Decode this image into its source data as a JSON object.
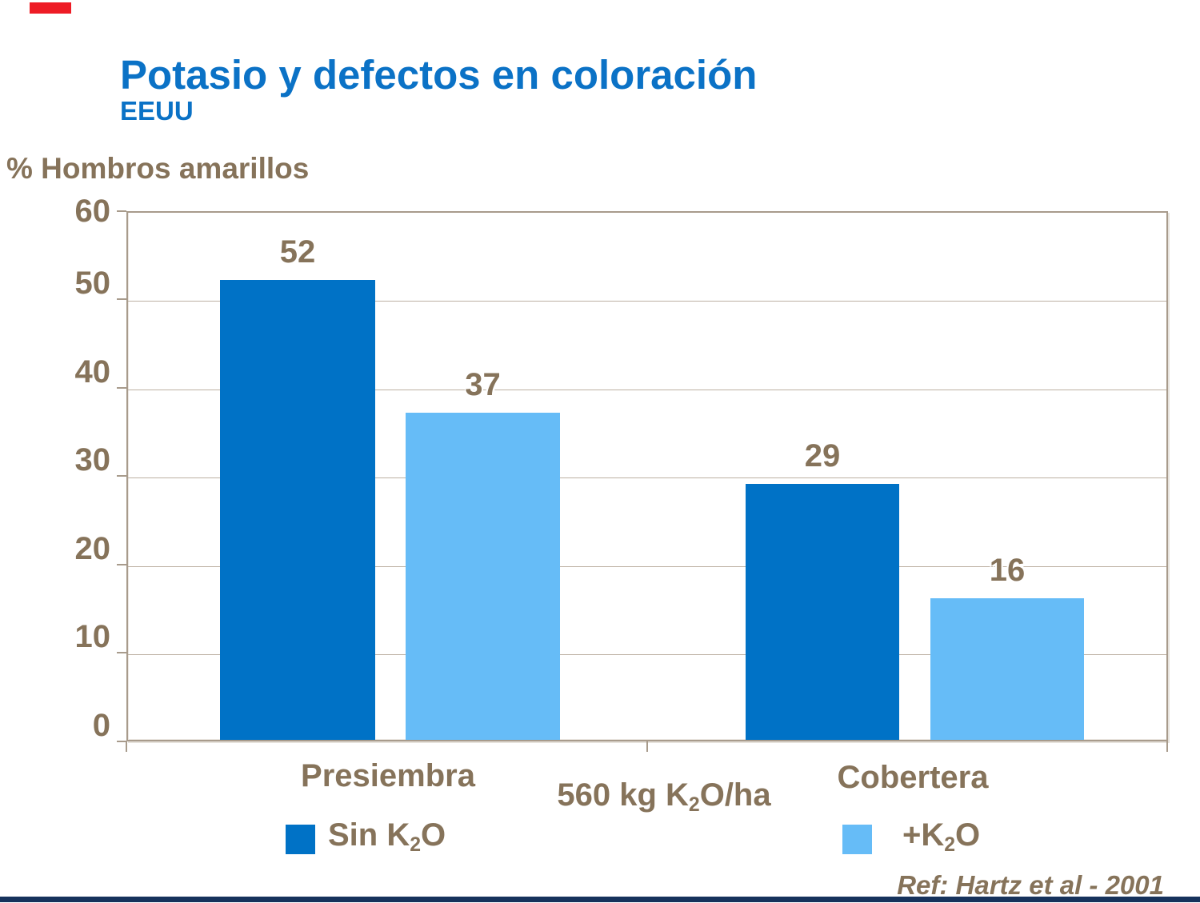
{
  "slide": {
    "title": "Potasio y defectos en coloración",
    "subtitle": "EEUU",
    "y_axis_title": "% Hombros amarillos",
    "reference": "Ref: Hartz et al - 2001"
  },
  "colors": {
    "title_blue": "#0B72C6",
    "dark_blue": "#0072C6",
    "light_blue": "#66BCF7",
    "text_brown": "#86735A",
    "line_tan": "#A89B8C",
    "grid_tan": "#BCB0A2",
    "top_bar_red": "#EE1C25",
    "bottom_bar_navy": "#16325C"
  },
  "x_note": {
    "base": "560 kg K",
    "sub": "2",
    "tail": "O/ha"
  },
  "legend": {
    "items": [
      {
        "base": "Sin K",
        "sub": "2",
        "tail": "O",
        "color": "#0072C6"
      },
      {
        "base": "+K",
        "sub": "2",
        "tail": "O",
        "color": "#66BCF7"
      }
    ]
  },
  "chart_data": {
    "type": "bar",
    "title": "Potasio y defectos en coloración",
    "subtitle": "EEUU",
    "categories": [
      "Presiembra",
      "Cobertera"
    ],
    "series": [
      {
        "name": "Sin K2O",
        "color": "#0072C6",
        "values": [
          52,
          29
        ]
      },
      {
        "name": "+K2O",
        "color": "#66BCF7",
        "values": [
          37,
          16
        ]
      }
    ],
    "xlabel": "",
    "ylabel": "% Hombros amarillos",
    "ylim": [
      0,
      60
    ],
    "yticks": [
      0,
      10,
      20,
      30,
      40,
      50,
      60
    ],
    "grid": true,
    "legend_position": "bottom",
    "annotation": "560 kg K2O/ha",
    "value_labels": [
      52,
      37,
      29,
      16
    ],
    "reference": "Ref: Hartz et al - 2001"
  }
}
